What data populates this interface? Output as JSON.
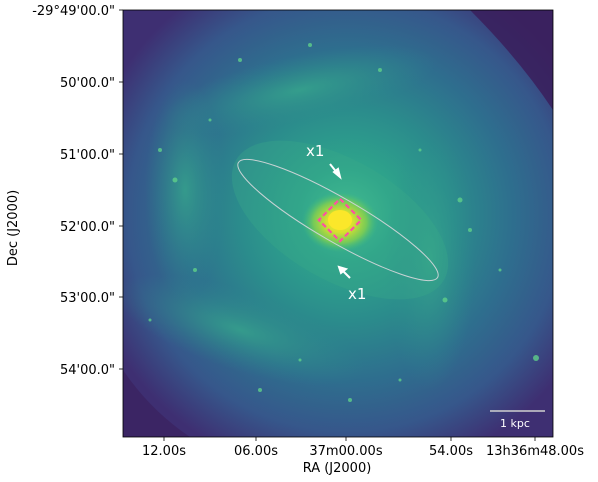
{
  "figure": {
    "x_axis_label": "RA (J2000)",
    "y_axis_label": "Dec (J2000)",
    "x_ticks": [
      "12.00s",
      "06.00s",
      "37m00.00s",
      "54.00s",
      "13h36m48.00s"
    ],
    "y_ticks": [
      "-29°49'00.0\"",
      "50'00.0\"",
      "51'00.0\"",
      "52'00.0\"",
      "53'00.0\"",
      "54'00.0\""
    ],
    "annotations": [
      "x1",
      "x1"
    ],
    "scale_bar_label": "1 kpc",
    "colormap": "viridis",
    "colors": {
      "background_dark": "#3a1f5c",
      "disk_teal": "#2f8a8c",
      "core_yellow": "#f7e62a",
      "ellipse_stroke": "#c8d3d4",
      "box_stroke": "#ff4fa3",
      "text_white": "#ffffff"
    }
  }
}
